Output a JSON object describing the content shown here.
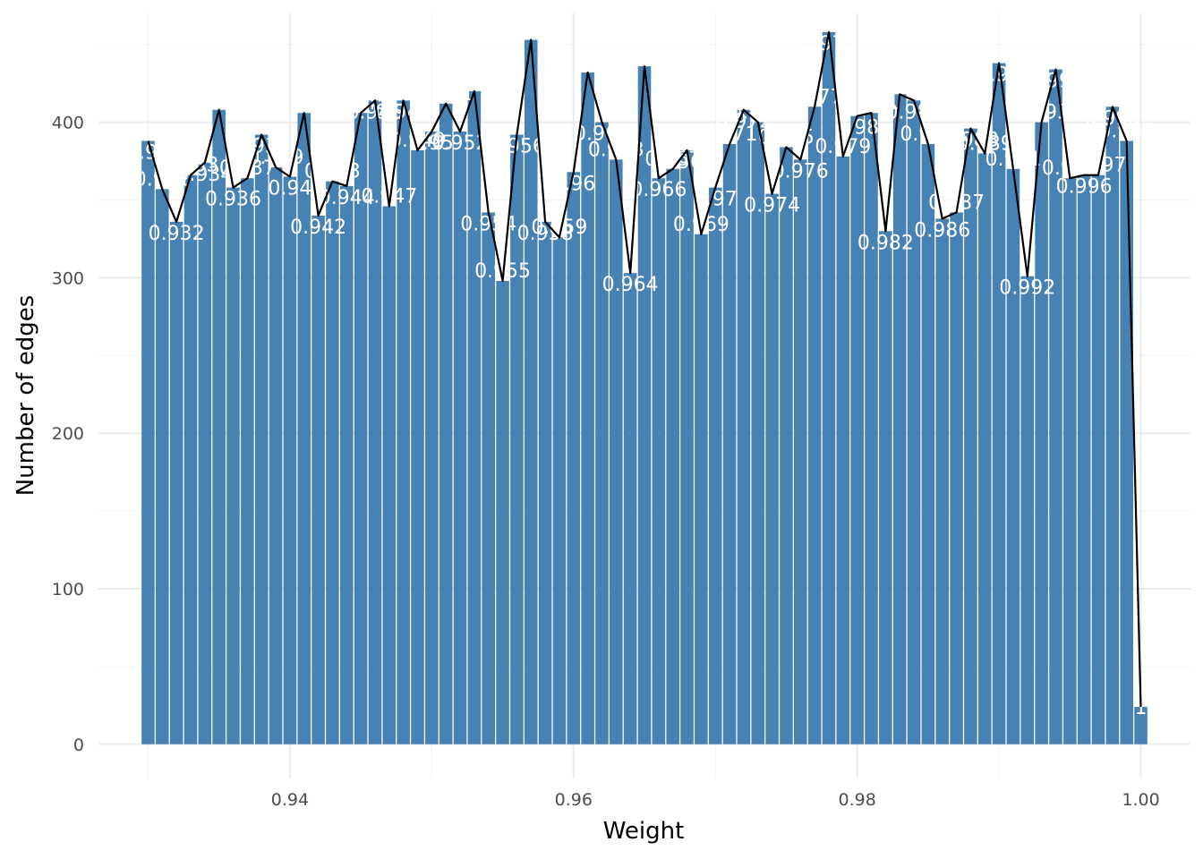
{
  "chart_data": {
    "type": "bar",
    "title": "",
    "xlabel": "Weight",
    "ylabel": "Number of edges",
    "xlim": [
      0.9265,
      1.0035
    ],
    "ylim": [
      -22,
      470
    ],
    "x_ticks": [
      "0.94",
      "0.96",
      "0.98",
      "1.00"
    ],
    "x_tick_values": [
      0.94,
      0.96,
      0.98,
      1.0
    ],
    "y_ticks": [
      "0",
      "100",
      "200",
      "300",
      "400"
    ],
    "y_tick_values": [
      0,
      100,
      200,
      300,
      400
    ],
    "grid": true,
    "overlay": "line connecting bar tops",
    "bar_width": 0.00092,
    "x": [
      0.93,
      0.931,
      0.932,
      0.933,
      0.934,
      0.935,
      0.936,
      0.937,
      0.938,
      0.939,
      0.94,
      0.941,
      0.942,
      0.943,
      0.944,
      0.945,
      0.946,
      0.947,
      0.948,
      0.949,
      0.95,
      0.951,
      0.952,
      0.953,
      0.954,
      0.955,
      0.956,
      0.957,
      0.958,
      0.959,
      0.96,
      0.961,
      0.962,
      0.963,
      0.964,
      0.965,
      0.966,
      0.967,
      0.968,
      0.969,
      0.97,
      0.971,
      0.972,
      0.973,
      0.974,
      0.975,
      0.976,
      0.977,
      0.978,
      0.979,
      0.98,
      0.981,
      0.982,
      0.983,
      0.984,
      0.985,
      0.986,
      0.987,
      0.988,
      0.989,
      0.99,
      0.991,
      0.992,
      0.993,
      0.994,
      0.995,
      0.996,
      0.997,
      0.998,
      0.999,
      1.0
    ],
    "values": [
      388,
      357,
      336,
      366,
      374,
      408,
      358,
      364,
      392,
      371,
      365,
      406,
      340,
      362,
      359,
      406,
      414,
      346,
      414,
      382,
      394,
      412,
      394,
      420,
      342,
      298,
      392,
      453,
      336,
      326,
      368,
      432,
      400,
      376,
      303,
      436,
      364,
      370,
      382,
      328,
      358,
      386,
      408,
      400,
      354,
      384,
      376,
      410,
      458,
      378,
      404,
      406,
      330,
      418,
      414,
      386,
      338,
      342,
      396,
      380,
      438,
      370,
      301,
      400,
      434,
      364,
      366,
      366,
      410,
      388,
      24
    ],
    "labels": [
      "0.93",
      "0.931",
      "0.932",
      "0.933",
      "0.934",
      "0.935",
      "0.936",
      "0.937",
      "0.938",
      "0.939",
      "0.94",
      "0.941",
      "0.942",
      "0.943",
      "0.944",
      "0.945",
      "0.946",
      "0.947",
      "0.948",
      "0.949",
      "0.95",
      "0.951",
      "0.952",
      "0.953",
      "0.954",
      "0.955",
      "0.956",
      "0.957",
      "0.958",
      "0.959",
      "0.96",
      "0.961",
      "0.962",
      "0.963",
      "0.964",
      "0.965",
      "0.966",
      "0.967",
      "0.968",
      "0.969",
      "0.97",
      "0.971",
      "0.972",
      "0.973",
      "0.974",
      "0.975",
      "0.976",
      "0.977",
      "0.978",
      "0.979",
      "0.98",
      "0.981",
      "0.982",
      "0.983",
      "0.984",
      "0.985",
      "0.986",
      "0.987",
      "0.988",
      "0.989",
      "0.99",
      "0.991",
      "0.992",
      "0.993",
      "0.994",
      "0.995",
      "0.996",
      "0.997",
      "0.998",
      "0.999",
      "1"
    ],
    "label_offsets": [
      12,
      -12,
      12,
      -12,
      12,
      -12,
      12,
      -12,
      12,
      -12,
      12,
      -12,
      12,
      -12,
      12,
      -12,
      12,
      -12,
      12,
      -12,
      12,
      -12,
      12,
      -12,
      12,
      -12,
      12,
      -12,
      12,
      -12,
      12,
      -12,
      12,
      -12,
      12,
      -12,
      12,
      -12,
      12,
      -12,
      12,
      -12,
      12,
      -12,
      12,
      -12,
      12,
      -12,
      12,
      -12,
      12,
      -12,
      12,
      -12,
      12,
      -12,
      12,
      -12,
      12,
      -12,
      12,
      -12,
      12,
      -12,
      12,
      -12,
      12,
      -12,
      12,
      -12,
      0
    ],
    "colors": {
      "bar": "#4682b4",
      "line": "#000000",
      "bar_label": "#ffffff",
      "grid_major": "#ebebeb",
      "grid_minor": "#f3f3f3"
    }
  }
}
